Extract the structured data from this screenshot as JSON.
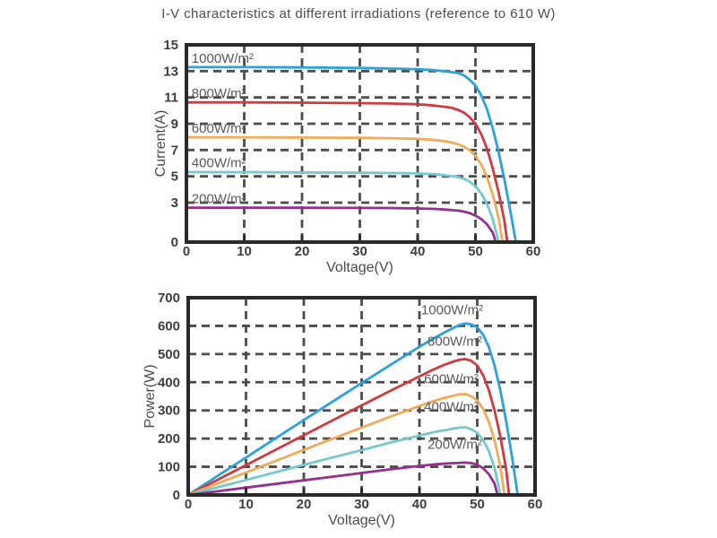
{
  "title": "I-V characteristics at different irradiations (reference to 610 W)",
  "colors": {
    "grid": "#4C4C4C",
    "axis": "#2B2A2B",
    "tick_text": "#3E3E40",
    "axis_title_text": "#4C4C4E",
    "curve_label_text": "#58595B",
    "title_text": "#4D4E50",
    "background": "#FFFFFF",
    "irr_1000": "#2AA3DC",
    "irr_800": "#D03A42",
    "irr_600": "#F0AC59",
    "irr_400": "#74C8CF",
    "irr_200": "#94308F"
  },
  "chart_data": [
    {
      "id": "iv",
      "type": "line",
      "xlabel": "Voltage(V)",
      "ylabel": "Current(A)",
      "xlim": [
        0,
        60
      ],
      "ylim": [
        0,
        15
      ],
      "xticks": [
        0,
        10,
        20,
        30,
        40,
        50,
        60
      ],
      "yticks": [
        0,
        3,
        5,
        7,
        9,
        11,
        13,
        15
      ],
      "grid": "dashed",
      "legend": "inline-labels",
      "series": [
        {
          "label": "1000W/m²",
          "color": "#2AA3DC",
          "label_at": [
            0.9,
            13.62
          ],
          "points": [
            [
              0,
              13.3
            ],
            [
              10,
              13.3
            ],
            [
              20,
              13.28
            ],
            [
              30,
              13.24
            ],
            [
              35,
              13.2
            ],
            [
              40,
              13.15
            ],
            [
              42,
              13.1
            ],
            [
              44,
              13.02
            ],
            [
              45,
              12.97
            ],
            [
              46,
              12.92
            ],
            [
              47,
              12.85
            ],
            [
              48,
              12.68
            ],
            [
              49,
              12.35
            ],
            [
              50,
              11.9
            ],
            [
              51,
              11.15
            ],
            [
              52,
              10.1
            ],
            [
              53,
              8.65
            ],
            [
              54,
              6.85
            ],
            [
              55,
              4.75
            ],
            [
              56,
              2.45
            ],
            [
              57,
              0
            ]
          ]
        },
        {
          "label": "800W/m²",
          "color": "#D03A42",
          "label_at": [
            0.9,
            10.98
          ],
          "points": [
            [
              0,
              10.62
            ],
            [
              10,
              10.62
            ],
            [
              20,
              10.6
            ],
            [
              30,
              10.57
            ],
            [
              35,
              10.54
            ],
            [
              40,
              10.48
            ],
            [
              42,
              10.42
            ],
            [
              44,
              10.32
            ],
            [
              45,
              10.27
            ],
            [
              46,
              10.2
            ],
            [
              47,
              10.05
            ],
            [
              48,
              9.85
            ],
            [
              49,
              9.5
            ],
            [
              50,
              9.0
            ],
            [
              51,
              8.2
            ],
            [
              52,
              7.1
            ],
            [
              53,
              5.6
            ],
            [
              54,
              3.8
            ],
            [
              55,
              1.6
            ],
            [
              55.5,
              0
            ]
          ]
        },
        {
          "label": "600W/m²",
          "color": "#F0AC59",
          "label_at": [
            0.9,
            8.32
          ],
          "points": [
            [
              0,
              7.97
            ],
            [
              10,
              7.97
            ],
            [
              20,
              7.95
            ],
            [
              30,
              7.93
            ],
            [
              35,
              7.9
            ],
            [
              40,
              7.85
            ],
            [
              43,
              7.76
            ],
            [
              45,
              7.65
            ],
            [
              46,
              7.56
            ],
            [
              47,
              7.44
            ],
            [
              48,
              7.26
            ],
            [
              49,
              6.98
            ],
            [
              50,
              6.55
            ],
            [
              51,
              5.9
            ],
            [
              52,
              4.95
            ],
            [
              53,
              3.6
            ],
            [
              54,
              1.85
            ],
            [
              54.7,
              0
            ]
          ]
        },
        {
          "label": "400W/m²",
          "color": "#74C8CF",
          "label_at": [
            0.9,
            5.68
          ],
          "points": [
            [
              0,
              5.32
            ],
            [
              10,
              5.32
            ],
            [
              20,
              5.3
            ],
            [
              30,
              5.28
            ],
            [
              35,
              5.26
            ],
            [
              40,
              5.22
            ],
            [
              43,
              5.16
            ],
            [
              45,
              5.07
            ],
            [
              46,
              5.01
            ],
            [
              47,
              4.95
            ],
            [
              48,
              4.82
            ],
            [
              49,
              4.6
            ],
            [
              50,
              4.25
            ],
            [
              51,
              3.7
            ],
            [
              52,
              2.9
            ],
            [
              53,
              1.75
            ],
            [
              54,
              0
            ]
          ]
        },
        {
          "label": "200W/m²",
          "color": "#94308F",
          "label_at": [
            0.9,
            2.97
          ],
          "points": [
            [
              0,
              2.62
            ],
            [
              10,
              2.62
            ],
            [
              20,
              2.61
            ],
            [
              30,
              2.6
            ],
            [
              35,
              2.59
            ],
            [
              40,
              2.56
            ],
            [
              43,
              2.52
            ],
            [
              45,
              2.47
            ],
            [
              47,
              2.39
            ],
            [
              48,
              2.32
            ],
            [
              49,
              2.2
            ],
            [
              50,
              2.02
            ],
            [
              51,
              1.75
            ],
            [
              52,
              1.35
            ],
            [
              53,
              0.72
            ],
            [
              53.5,
              0
            ]
          ]
        }
      ]
    },
    {
      "id": "pv",
      "type": "line",
      "xlabel": "Voltage(V)",
      "ylabel": "Power(W)",
      "xlim": [
        0,
        60
      ],
      "ylim": [
        0,
        700
      ],
      "xticks": [
        0,
        10,
        20,
        30,
        40,
        50,
        60
      ],
      "yticks": [
        0,
        100,
        200,
        300,
        400,
        500,
        600,
        700
      ],
      "grid": "dashed",
      "legend": "inline-labels",
      "series": [
        {
          "label": "1000W/m²",
          "color": "#2AA3DC",
          "label_at": [
            40.3,
            641
          ],
          "points": [
            [
              0,
              0
            ],
            [
              10,
              133
            ],
            [
              20,
              266
            ],
            [
              30,
              397
            ],
            [
              35,
              462
            ],
            [
              40,
              526
            ],
            [
              42,
              550
            ],
            [
              44,
              573
            ],
            [
              45,
              584
            ],
            [
              46,
              594
            ],
            [
              47,
              604
            ],
            [
              48,
              609
            ],
            [
              49,
              605
            ],
            [
              50,
              595
            ],
            [
              51,
              569
            ],
            [
              52,
              525
            ],
            [
              53,
              459
            ],
            [
              54,
              370
            ],
            [
              55,
              261
            ],
            [
              56,
              137
            ],
            [
              57,
              0
            ]
          ]
        },
        {
          "label": "800W/m²",
          "color": "#D03A42",
          "label_at": [
            41.4,
            529
          ],
          "points": [
            [
              0,
              0
            ],
            [
              10,
              106
            ],
            [
              20,
              212
            ],
            [
              30,
              318
            ],
            [
              35,
              370
            ],
            [
              40,
              421
            ],
            [
              42,
              441
            ],
            [
              44,
              459
            ],
            [
              45,
              467
            ],
            [
              46,
              474
            ],
            [
              47,
              480
            ],
            [
              48,
              482
            ],
            [
              49,
              476
            ],
            [
              50,
              459
            ],
            [
              51,
              425
            ],
            [
              52,
              372
            ],
            [
              53,
              300
            ],
            [
              54,
              207
            ],
            [
              55,
              90
            ],
            [
              55.5,
              0
            ]
          ]
        },
        {
          "label": "600W/m²",
          "color": "#F0AC59",
          "label_at": [
            40.8,
            396
          ],
          "points": [
            [
              0,
              0
            ],
            [
              10,
              80
            ],
            [
              20,
              160
            ],
            [
              30,
              239
            ],
            [
              35,
              278
            ],
            [
              40,
              316
            ],
            [
              43,
              337
            ],
            [
              45,
              348
            ],
            [
              46,
              353
            ],
            [
              47,
              357
            ],
            [
              48,
              358
            ],
            [
              49,
              350
            ],
            [
              50,
              335
            ],
            [
              51,
              306
            ],
            [
              52,
              260
            ],
            [
              53,
              193
            ],
            [
              54,
              101
            ],
            [
              54.7,
              0
            ]
          ]
        },
        {
          "label": "400W/m²",
          "color": "#74C8CF",
          "label_at": [
            40.8,
            298
          ],
          "points": [
            [
              0,
              0
            ],
            [
              10,
              53
            ],
            [
              20,
              107
            ],
            [
              30,
              159
            ],
            [
              35,
              186
            ],
            [
              40,
              211
            ],
            [
              43,
              225
            ],
            [
              45,
              232
            ],
            [
              46,
              236
            ],
            [
              47,
              239
            ],
            [
              48,
              240
            ],
            [
              49,
              233
            ],
            [
              50,
              220
            ],
            [
              51,
              196
            ],
            [
              52,
              156
            ],
            [
              53,
              96
            ],
            [
              54,
              0
            ]
          ]
        },
        {
          "label": "200W/m²",
          "color": "#94308F",
          "label_at": [
            41.4,
            164
          ],
          "points": [
            [
              0,
              0
            ],
            [
              10,
              26
            ],
            [
              20,
              52
            ],
            [
              30,
              78
            ],
            [
              35,
              91
            ],
            [
              40,
              103
            ],
            [
              43,
              109
            ],
            [
              45,
              112
            ],
            [
              47,
              114
            ],
            [
              48,
              115
            ],
            [
              49,
              113
            ],
            [
              50,
              107
            ],
            [
              51,
              95
            ],
            [
              52,
              74
            ],
            [
              53,
              40
            ],
            [
              53.5,
              0
            ]
          ]
        }
      ]
    }
  ]
}
